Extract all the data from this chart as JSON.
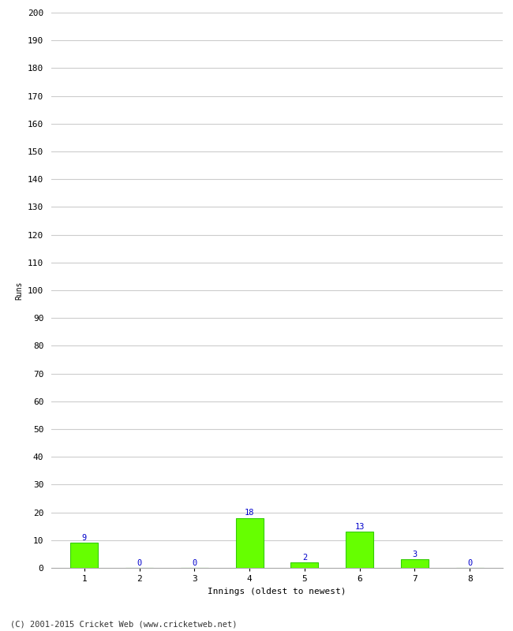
{
  "categories": [
    1,
    2,
    3,
    4,
    5,
    6,
    7,
    8
  ],
  "values": [
    9,
    0,
    0,
    18,
    2,
    13,
    3,
    0
  ],
  "bar_color": "#66ff00",
  "bar_edge_color": "#33cc00",
  "label_color": "#0000cc",
  "xlabel": "Innings (oldest to newest)",
  "ylabel": "Runs",
  "ylim": [
    0,
    200
  ],
  "yticks": [
    0,
    10,
    20,
    30,
    40,
    50,
    60,
    70,
    80,
    90,
    100,
    110,
    120,
    130,
    140,
    150,
    160,
    170,
    180,
    190,
    200
  ],
  "grid_color": "#cccccc",
  "background_color": "#ffffff",
  "footer": "(C) 2001-2015 Cricket Web (www.cricketweb.net)",
  "label_fontsize": 7.5,
  "axis_fontsize": 8,
  "ylabel_fontsize": 7,
  "footer_fontsize": 7.5
}
